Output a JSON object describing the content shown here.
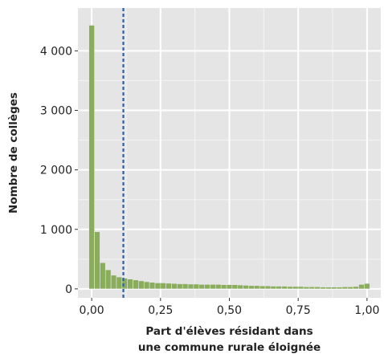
{
  "chart_data": {
    "type": "bar",
    "xlabel_lines": [
      "Part d'élèves résidant dans",
      "une commune rurale éloignée"
    ],
    "ylabel": "Nombre de collèges",
    "xlim": [
      -0.05,
      1.05
    ],
    "ylim": [
      -150,
      4720
    ],
    "x_ticks": [
      {
        "value": 0.0,
        "label": "0,00"
      },
      {
        "value": 0.25,
        "label": "0,25"
      },
      {
        "value": 0.5,
        "label": "0,50"
      },
      {
        "value": 0.75,
        "label": "0,75"
      },
      {
        "value": 1.0,
        "label": "1,00"
      }
    ],
    "y_ticks": [
      {
        "value": 0,
        "label": "0"
      },
      {
        "value": 1000,
        "label": "1 000"
      },
      {
        "value": 2000,
        "label": "2 000"
      },
      {
        "value": 3000,
        "label": "3 000"
      },
      {
        "value": 4000,
        "label": "4 000"
      }
    ],
    "bin_width": 0.02,
    "bin_centers": [
      0.0,
      0.02,
      0.04,
      0.06,
      0.08,
      0.1,
      0.12,
      0.14,
      0.16,
      0.18,
      0.2,
      0.22,
      0.24,
      0.26,
      0.28,
      0.3,
      0.32,
      0.34,
      0.36,
      0.38,
      0.4,
      0.42,
      0.44,
      0.46,
      0.48,
      0.5,
      0.52,
      0.54,
      0.56,
      0.58,
      0.6,
      0.62,
      0.64,
      0.66,
      0.68,
      0.7,
      0.72,
      0.74,
      0.76,
      0.78,
      0.8,
      0.82,
      0.84,
      0.86,
      0.88,
      0.9,
      0.92,
      0.94,
      0.96,
      0.98,
      1.0
    ],
    "values": [
      4430,
      960,
      440,
      320,
      230,
      200,
      180,
      165,
      150,
      135,
      120,
      110,
      100,
      100,
      95,
      90,
      85,
      85,
      80,
      80,
      75,
      75,
      75,
      75,
      70,
      70,
      70,
      65,
      60,
      55,
      55,
      50,
      50,
      45,
      45,
      45,
      40,
      40,
      40,
      35,
      35,
      35,
      30,
      30,
      30,
      30,
      35,
      35,
      40,
      75,
      90
    ],
    "reference_line_x": 0.115,
    "bar_color": "#8aad5c",
    "reference_line_color": "#2b5faa",
    "panel_background": "#e5e5e5",
    "grid": true,
    "legend": "none"
  }
}
